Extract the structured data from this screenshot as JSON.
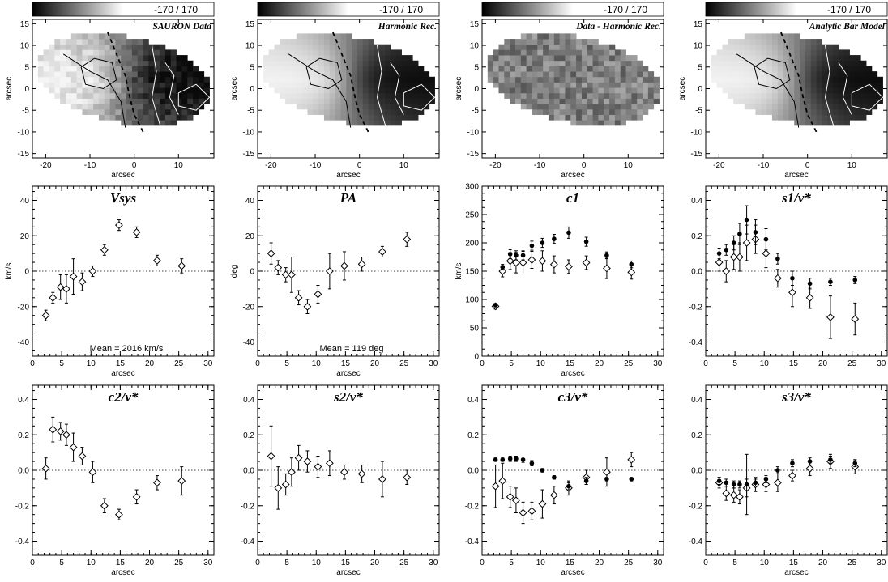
{
  "maps": [
    {
      "title": "SAURON Data",
      "range_label": "-170 / 170",
      "kind": "data",
      "xlabel": "arcsec",
      "ylabel": "arcsec",
      "xlim": [
        -23,
        18
      ],
      "ylim": [
        -16,
        16
      ],
      "xticks": [
        -20,
        -10,
        0,
        10
      ],
      "yticks": [
        -15,
        -10,
        -5,
        0,
        5,
        10,
        15
      ]
    },
    {
      "title": "Harmonic Rec.",
      "range_label": "-170 / 170",
      "kind": "smooth",
      "xlabel": "arcsec",
      "ylabel": "arcsec",
      "xlim": [
        -23,
        18
      ],
      "ylim": [
        -16,
        16
      ],
      "xticks": [
        -20,
        -10,
        0,
        10
      ],
      "yticks": [
        -15,
        -10,
        -5,
        0,
        5,
        10,
        15
      ]
    },
    {
      "title": "Data - Harmonic Rec.",
      "range_label": "-170 / 170",
      "kind": "residual",
      "xlabel": "arcsec",
      "ylabel": "arcsec",
      "xlim": [
        -23,
        18
      ],
      "ylim": [
        -16,
        16
      ],
      "xticks": [
        -20,
        -10,
        0,
        10
      ],
      "yticks": [
        -15,
        -10,
        -5,
        0,
        5,
        10,
        15
      ]
    },
    {
      "title": "Analytic Bar Model",
      "range_label": "-170 / 170",
      "kind": "model",
      "xlabel": "arcsec",
      "ylabel": "arcsec",
      "xlim": [
        -23,
        18
      ],
      "ylim": [
        -16,
        16
      ],
      "xticks": [
        -20,
        -10,
        0,
        10
      ],
      "yticks": [
        -15,
        -10,
        -5,
        0,
        5,
        10,
        15
      ]
    }
  ],
  "chart_data": [
    {
      "type": "scatter",
      "title": "Vsys",
      "xlabel": "arcsec",
      "ylabel": "km/s",
      "xlim": [
        0,
        31
      ],
      "ylim": [
        -48,
        48
      ],
      "xticks": [
        0,
        5,
        10,
        15,
        20,
        25,
        30
      ],
      "yticks": [
        -40,
        -20,
        0,
        20,
        40
      ],
      "zero_line": true,
      "annotation": "Mean = 2016 km/s",
      "series": [
        {
          "marker": "diamond",
          "x": [
            2.3,
            3.5,
            4.8,
            5.8,
            7.0,
            8.5,
            10.3,
            12.3,
            14.8,
            17.8,
            21.3,
            25.5
          ],
          "y": [
            -25,
            -15,
            -9,
            -10,
            -3,
            -6,
            0,
            12,
            26,
            22,
            6,
            3
          ],
          "err": [
            3,
            3,
            7,
            8,
            10,
            5,
            3,
            3,
            3,
            3,
            3,
            4
          ]
        }
      ]
    },
    {
      "type": "scatter",
      "title": "PA",
      "xlabel": "arcsec",
      "ylabel": "deg",
      "xlim": [
        0,
        31
      ],
      "ylim": [
        -48,
        48
      ],
      "xticks": [
        0,
        5,
        10,
        15,
        20,
        25,
        30
      ],
      "yticks": [
        -40,
        -20,
        0,
        20,
        40
      ],
      "zero_line": true,
      "annotation": "Mean = 119 deg",
      "series": [
        {
          "marker": "diamond",
          "x": [
            2.3,
            3.5,
            4.8,
            5.8,
            7.0,
            8.5,
            10.3,
            12.3,
            14.8,
            17.8,
            21.3,
            25.5
          ],
          "y": [
            10,
            2,
            -2,
            -2,
            -15,
            -20,
            -13,
            0,
            3,
            4,
            11,
            18
          ],
          "err": [
            6,
            4,
            4,
            10,
            4,
            4,
            5,
            10,
            8,
            4,
            3,
            4
          ]
        }
      ]
    },
    {
      "type": "scatter",
      "title": "c1",
      "xlabel": "arcsec",
      "ylabel": "km/s",
      "xlim": [
        0,
        31
      ],
      "ylim": [
        0,
        300
      ],
      "xticks": [
        0,
        5,
        10,
        15,
        20,
        25,
        30
      ],
      "yticks": [
        0,
        50,
        100,
        150,
        200,
        250,
        300
      ],
      "zero_line": false,
      "annotation": "",
      "series": [
        {
          "marker": "diamond",
          "x": [
            2.3,
            3.5,
            4.8,
            5.8,
            7.0,
            8.5,
            10.3,
            12.3,
            14.8,
            17.8,
            21.3,
            25.5
          ],
          "y": [
            88,
            150,
            168,
            165,
            165,
            170,
            168,
            162,
            158,
            165,
            155,
            148
          ],
          "err": [
            5,
            10,
            15,
            18,
            20,
            15,
            18,
            15,
            12,
            12,
            18,
            12
          ]
        },
        {
          "marker": "dot",
          "x": [
            2.3,
            3.5,
            4.8,
            5.8,
            7.0,
            8.5,
            10.3,
            12.3,
            14.8,
            17.8,
            21.3,
            25.5
          ],
          "y": [
            90,
            157,
            180,
            178,
            178,
            195,
            200,
            207,
            218,
            202,
            178,
            162
          ],
          "err": [
            3,
            5,
            8,
            8,
            8,
            8,
            8,
            8,
            10,
            8,
            6,
            6
          ]
        }
      ]
    },
    {
      "type": "scatter",
      "title": "s1/v*",
      "xlabel": "",
      "ylabel": "",
      "xlim": [
        0,
        31
      ],
      "ylim": [
        -0.48,
        0.48
      ],
      "xticks": [
        0,
        5,
        10,
        15,
        20,
        25,
        30
      ],
      "yticks": [
        -0.4,
        -0.2,
        0.0,
        0.2,
        0.4
      ],
      "zero_line": true,
      "annotation": "",
      "series": [
        {
          "marker": "diamond",
          "x": [
            2.3,
            3.5,
            4.8,
            5.8,
            7.0,
            8.5,
            10.3,
            12.3,
            14.8,
            17.8,
            21.3,
            25.5
          ],
          "y": [
            0.05,
            0.0,
            0.08,
            0.08,
            0.16,
            0.18,
            0.1,
            -0.04,
            -0.12,
            -0.15,
            -0.26,
            -0.27
          ],
          "err": [
            0.05,
            0.06,
            0.07,
            0.08,
            0.1,
            0.08,
            0.08,
            0.05,
            0.08,
            0.06,
            0.12,
            0.09
          ]
        },
        {
          "marker": "dot",
          "x": [
            2.3,
            3.5,
            4.8,
            5.8,
            7.0,
            8.5,
            10.3,
            12.3,
            14.8,
            17.8,
            21.3,
            25.5
          ],
          "y": [
            0.1,
            0.12,
            0.16,
            0.21,
            0.29,
            0.22,
            0.18,
            0.07,
            -0.04,
            -0.07,
            -0.06,
            -0.05
          ],
          "err": [
            0.03,
            0.03,
            0.04,
            0.06,
            0.08,
            0.07,
            0.06,
            0.03,
            0.04,
            0.03,
            0.02,
            0.02
          ]
        }
      ]
    },
    {
      "type": "scatter",
      "title": "c2/v*",
      "xlabel": "arcsec",
      "ylabel": "",
      "xlim": [
        0,
        31
      ],
      "ylim": [
        -0.48,
        0.48
      ],
      "xticks": [
        0,
        5,
        10,
        15,
        20,
        25,
        30
      ],
      "yticks": [
        -0.4,
        -0.2,
        0.0,
        0.2,
        0.4
      ],
      "zero_line": true,
      "annotation": "",
      "series": [
        {
          "marker": "diamond",
          "x": [
            2.3,
            3.5,
            4.8,
            5.8,
            7.0,
            8.5,
            10.3,
            12.3,
            14.8,
            17.8,
            21.3,
            25.5
          ],
          "y": [
            0.01,
            0.23,
            0.22,
            0.2,
            0.13,
            0.08,
            -0.01,
            -0.2,
            -0.25,
            -0.15,
            -0.07,
            -0.06
          ],
          "err": [
            0.06,
            0.07,
            0.05,
            0.06,
            0.08,
            0.05,
            0.06,
            0.04,
            0.03,
            0.04,
            0.04,
            0.08
          ]
        }
      ]
    },
    {
      "type": "scatter",
      "title": "s2/v*",
      "xlabel": "arcsec",
      "ylabel": "",
      "xlim": [
        0,
        31
      ],
      "ylim": [
        -0.48,
        0.48
      ],
      "xticks": [
        0,
        5,
        10,
        15,
        20,
        25,
        30
      ],
      "yticks": [
        -0.4,
        -0.2,
        0.0,
        0.2,
        0.4
      ],
      "zero_line": true,
      "annotation": "",
      "series": [
        {
          "marker": "diamond",
          "x": [
            2.3,
            3.5,
            4.8,
            5.8,
            7.0,
            8.5,
            10.3,
            12.3,
            14.8,
            17.8,
            21.3,
            25.5
          ],
          "y": [
            0.08,
            -0.1,
            -0.08,
            -0.01,
            0.07,
            0.05,
            0.02,
            0.04,
            -0.01,
            -0.02,
            -0.05,
            -0.04
          ],
          "err": [
            0.17,
            0.12,
            0.06,
            0.08,
            0.07,
            0.06,
            0.06,
            0.07,
            0.04,
            0.05,
            0.1,
            0.04
          ]
        }
      ]
    },
    {
      "type": "scatter",
      "title": "c3/v*",
      "xlabel": "arcsec",
      "ylabel": "",
      "xlim": [
        0,
        31
      ],
      "ylim": [
        -0.48,
        0.48
      ],
      "xticks": [
        0,
        5,
        10,
        15,
        20,
        25,
        30
      ],
      "yticks": [
        -0.4,
        -0.2,
        0.0,
        0.2,
        0.4
      ],
      "zero_line": true,
      "annotation": "",
      "series": [
        {
          "marker": "diamond",
          "x": [
            2.3,
            3.5,
            4.8,
            5.8,
            7.0,
            8.5,
            10.3,
            12.3,
            14.8,
            17.8,
            21.3,
            25.5
          ],
          "y": [
            -0.09,
            -0.06,
            -0.15,
            -0.17,
            -0.24,
            -0.23,
            -0.19,
            -0.14,
            -0.1,
            -0.04,
            -0.01,
            0.06
          ],
          "err": [
            0.12,
            0.1,
            0.06,
            0.07,
            0.06,
            0.05,
            0.08,
            0.05,
            0.04,
            0.04,
            0.08,
            0.04
          ]
        },
        {
          "marker": "dot",
          "x": [
            2.3,
            3.5,
            4.8,
            5.8,
            7.0,
            8.5,
            10.3,
            12.3,
            14.8,
            17.8,
            21.3,
            25.5
          ],
          "y": [
            0.06,
            0.06,
            0.065,
            0.065,
            0.06,
            0.04,
            0.0,
            -0.04,
            -0.09,
            -0.06,
            -0.05,
            -0.05
          ],
          "err": [
            0.01,
            0.01,
            0.015,
            0.015,
            0.015,
            0.015,
            0.01,
            0.01,
            0.02,
            0.02,
            0.01,
            0.01
          ]
        }
      ]
    },
    {
      "type": "scatter",
      "title": "s3/v*",
      "xlabel": "arcsec",
      "ylabel": "",
      "xlim": [
        0,
        31
      ],
      "ylim": [
        -0.48,
        0.48
      ],
      "xticks": [
        0,
        5,
        10,
        15,
        20,
        25,
        30
      ],
      "yticks": [
        -0.4,
        -0.2,
        0.0,
        0.2,
        0.4
      ],
      "zero_line": true,
      "annotation": "",
      "series": [
        {
          "marker": "diamond",
          "x": [
            2.3,
            3.5,
            4.8,
            5.8,
            7.0,
            8.5,
            10.3,
            12.3,
            14.8,
            17.8,
            21.3,
            25.5
          ],
          "y": [
            -0.07,
            -0.13,
            -0.14,
            -0.15,
            -0.1,
            -0.08,
            -0.08,
            -0.07,
            -0.03,
            0.01,
            0.05,
            0.02
          ],
          "err": [
            0.03,
            0.04,
            0.04,
            0.04,
            0.05,
            0.04,
            0.04,
            0.05,
            0.03,
            0.04,
            0.04,
            0.04
          ]
        },
        {
          "marker": "dot",
          "x": [
            2.3,
            3.5,
            4.8,
            5.8,
            7.0,
            8.5,
            10.3,
            12.3,
            14.8,
            17.8,
            21.3,
            25.5
          ],
          "y": [
            -0.06,
            -0.07,
            -0.08,
            -0.08,
            -0.08,
            -0.07,
            -0.05,
            0.0,
            0.04,
            0.05,
            0.06,
            0.04
          ],
          "err": [
            0.02,
            0.02,
            0.02,
            0.02,
            0.17,
            0.02,
            0.02,
            0.02,
            0.02,
            0.02,
            0.02,
            0.02
          ]
        }
      ]
    }
  ]
}
